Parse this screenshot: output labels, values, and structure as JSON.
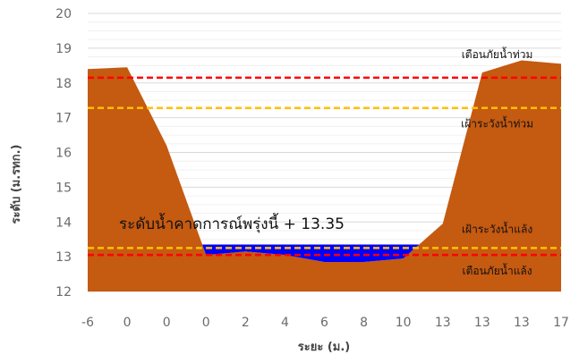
{
  "chart_data": {
    "type": "area",
    "title": "",
    "xlabel": "ระยะ (ม.)",
    "ylabel": "ระดับ (ม.รทก.)",
    "ylim": [
      12,
      20
    ],
    "yticks": [
      12,
      13,
      14,
      15,
      16,
      17,
      18,
      19,
      20
    ],
    "grid": true,
    "x_categories": [
      "-6",
      "0",
      "0",
      "0",
      "2",
      "4",
      "6",
      "8",
      "10",
      "13",
      "13",
      "13",
      "17"
    ],
    "series": [
      {
        "type": "area",
        "values": [
          18.4,
          18.45,
          16.2,
          13.05,
          13.15,
          13.05,
          12.85,
          12.85,
          12.95,
          13.95,
          18.3,
          18.65,
          18.55
        ],
        "color": "#c55a11"
      },
      {
        "type": "water",
        "level": 13.35,
        "color": "#0000ff"
      }
    ],
    "reference_lines": [
      {
        "label": "เตือนภัยน้ำท่วม",
        "value": 18.15,
        "color": "#ff0000"
      },
      {
        "label": "เฝ้าระวังน้ำท่วม",
        "value": 17.28,
        "color": "#ffc000"
      },
      {
        "label": "เฝ้าระวังน้ำแล้ง",
        "value": 13.25,
        "color": "#ffc000"
      },
      {
        "label": "เตือนภัยน้ำแล้ง",
        "value": 13.05,
        "color": "#ff0000"
      }
    ],
    "annotation": {
      "label": "ระดับน้ำคาดการณ์พรุ่งนี้ +",
      "value": "13.35"
    }
  }
}
